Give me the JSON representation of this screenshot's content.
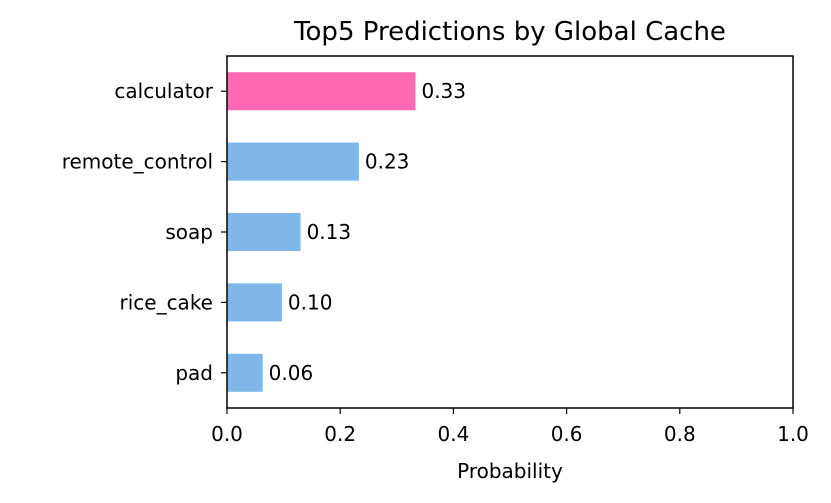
{
  "chart_data": {
    "type": "bar",
    "orientation": "horizontal",
    "title": "Top5 Predictions by Global Cache",
    "xlabel": "Probability",
    "ylabel": "",
    "xlim": [
      0,
      1.0
    ],
    "xticks": [
      "0.0",
      "0.2",
      "0.4",
      "0.6",
      "0.8",
      "1.0"
    ],
    "grid": false,
    "categories": [
      "calculator",
      "remote_control",
      "soap",
      "rice_cake",
      "pad"
    ],
    "values": [
      0.333,
      0.233,
      0.13,
      0.097,
      0.063
    ],
    "value_labels": [
      "0.33",
      "0.23",
      "0.13",
      "0.10",
      "0.06"
    ],
    "colors": [
      "#ff69b4",
      "#7fb8e8",
      "#7fb8e8",
      "#7fb8e8",
      "#7fb8e8"
    ]
  }
}
